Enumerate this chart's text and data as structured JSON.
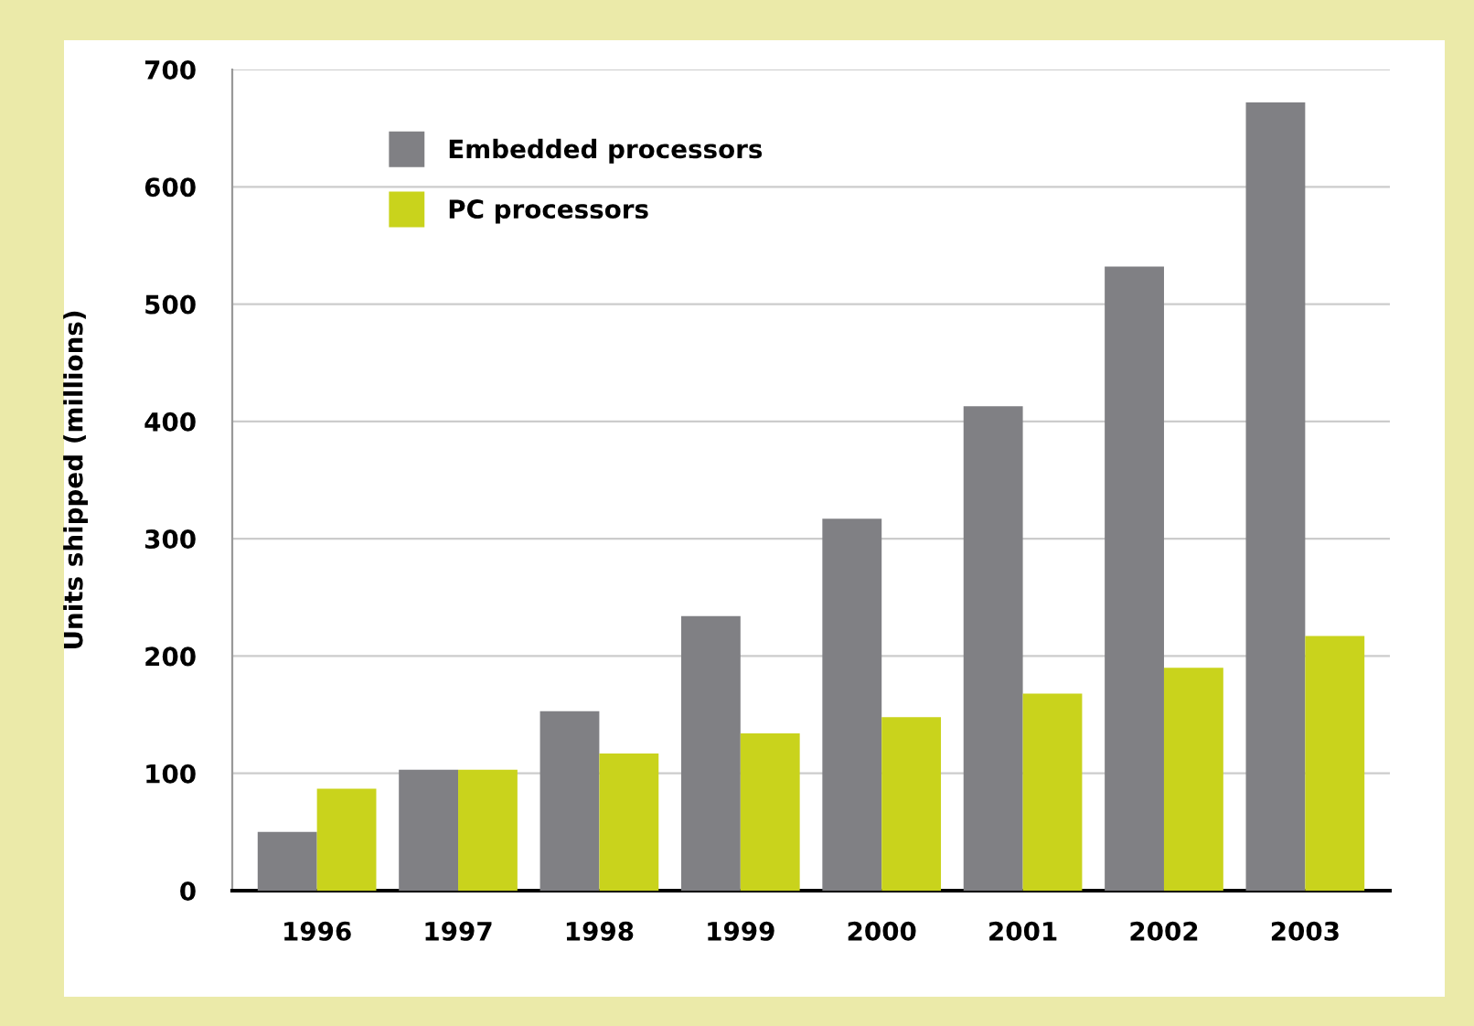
{
  "chart_data": {
    "type": "bar",
    "ylabel": "Units shipped (millions)",
    "categories": [
      "1996",
      "1997",
      "1998",
      "1999",
      "2000",
      "2001",
      "2002",
      "2003"
    ],
    "series": [
      {
        "name": "Embedded processors",
        "color": "#808084",
        "values": [
          50,
          103,
          153,
          234,
          317,
          413,
          532,
          672
        ]
      },
      {
        "name": "PC processors",
        "color": "#c9d31c",
        "values": [
          87,
          103,
          117,
          134,
          148,
          168,
          190,
          217
        ]
      }
    ],
    "ylim": [
      0,
      700
    ],
    "yticks": [
      0,
      100,
      200,
      300,
      400,
      500,
      600,
      700
    ],
    "grid": "y",
    "legend": "top left"
  }
}
